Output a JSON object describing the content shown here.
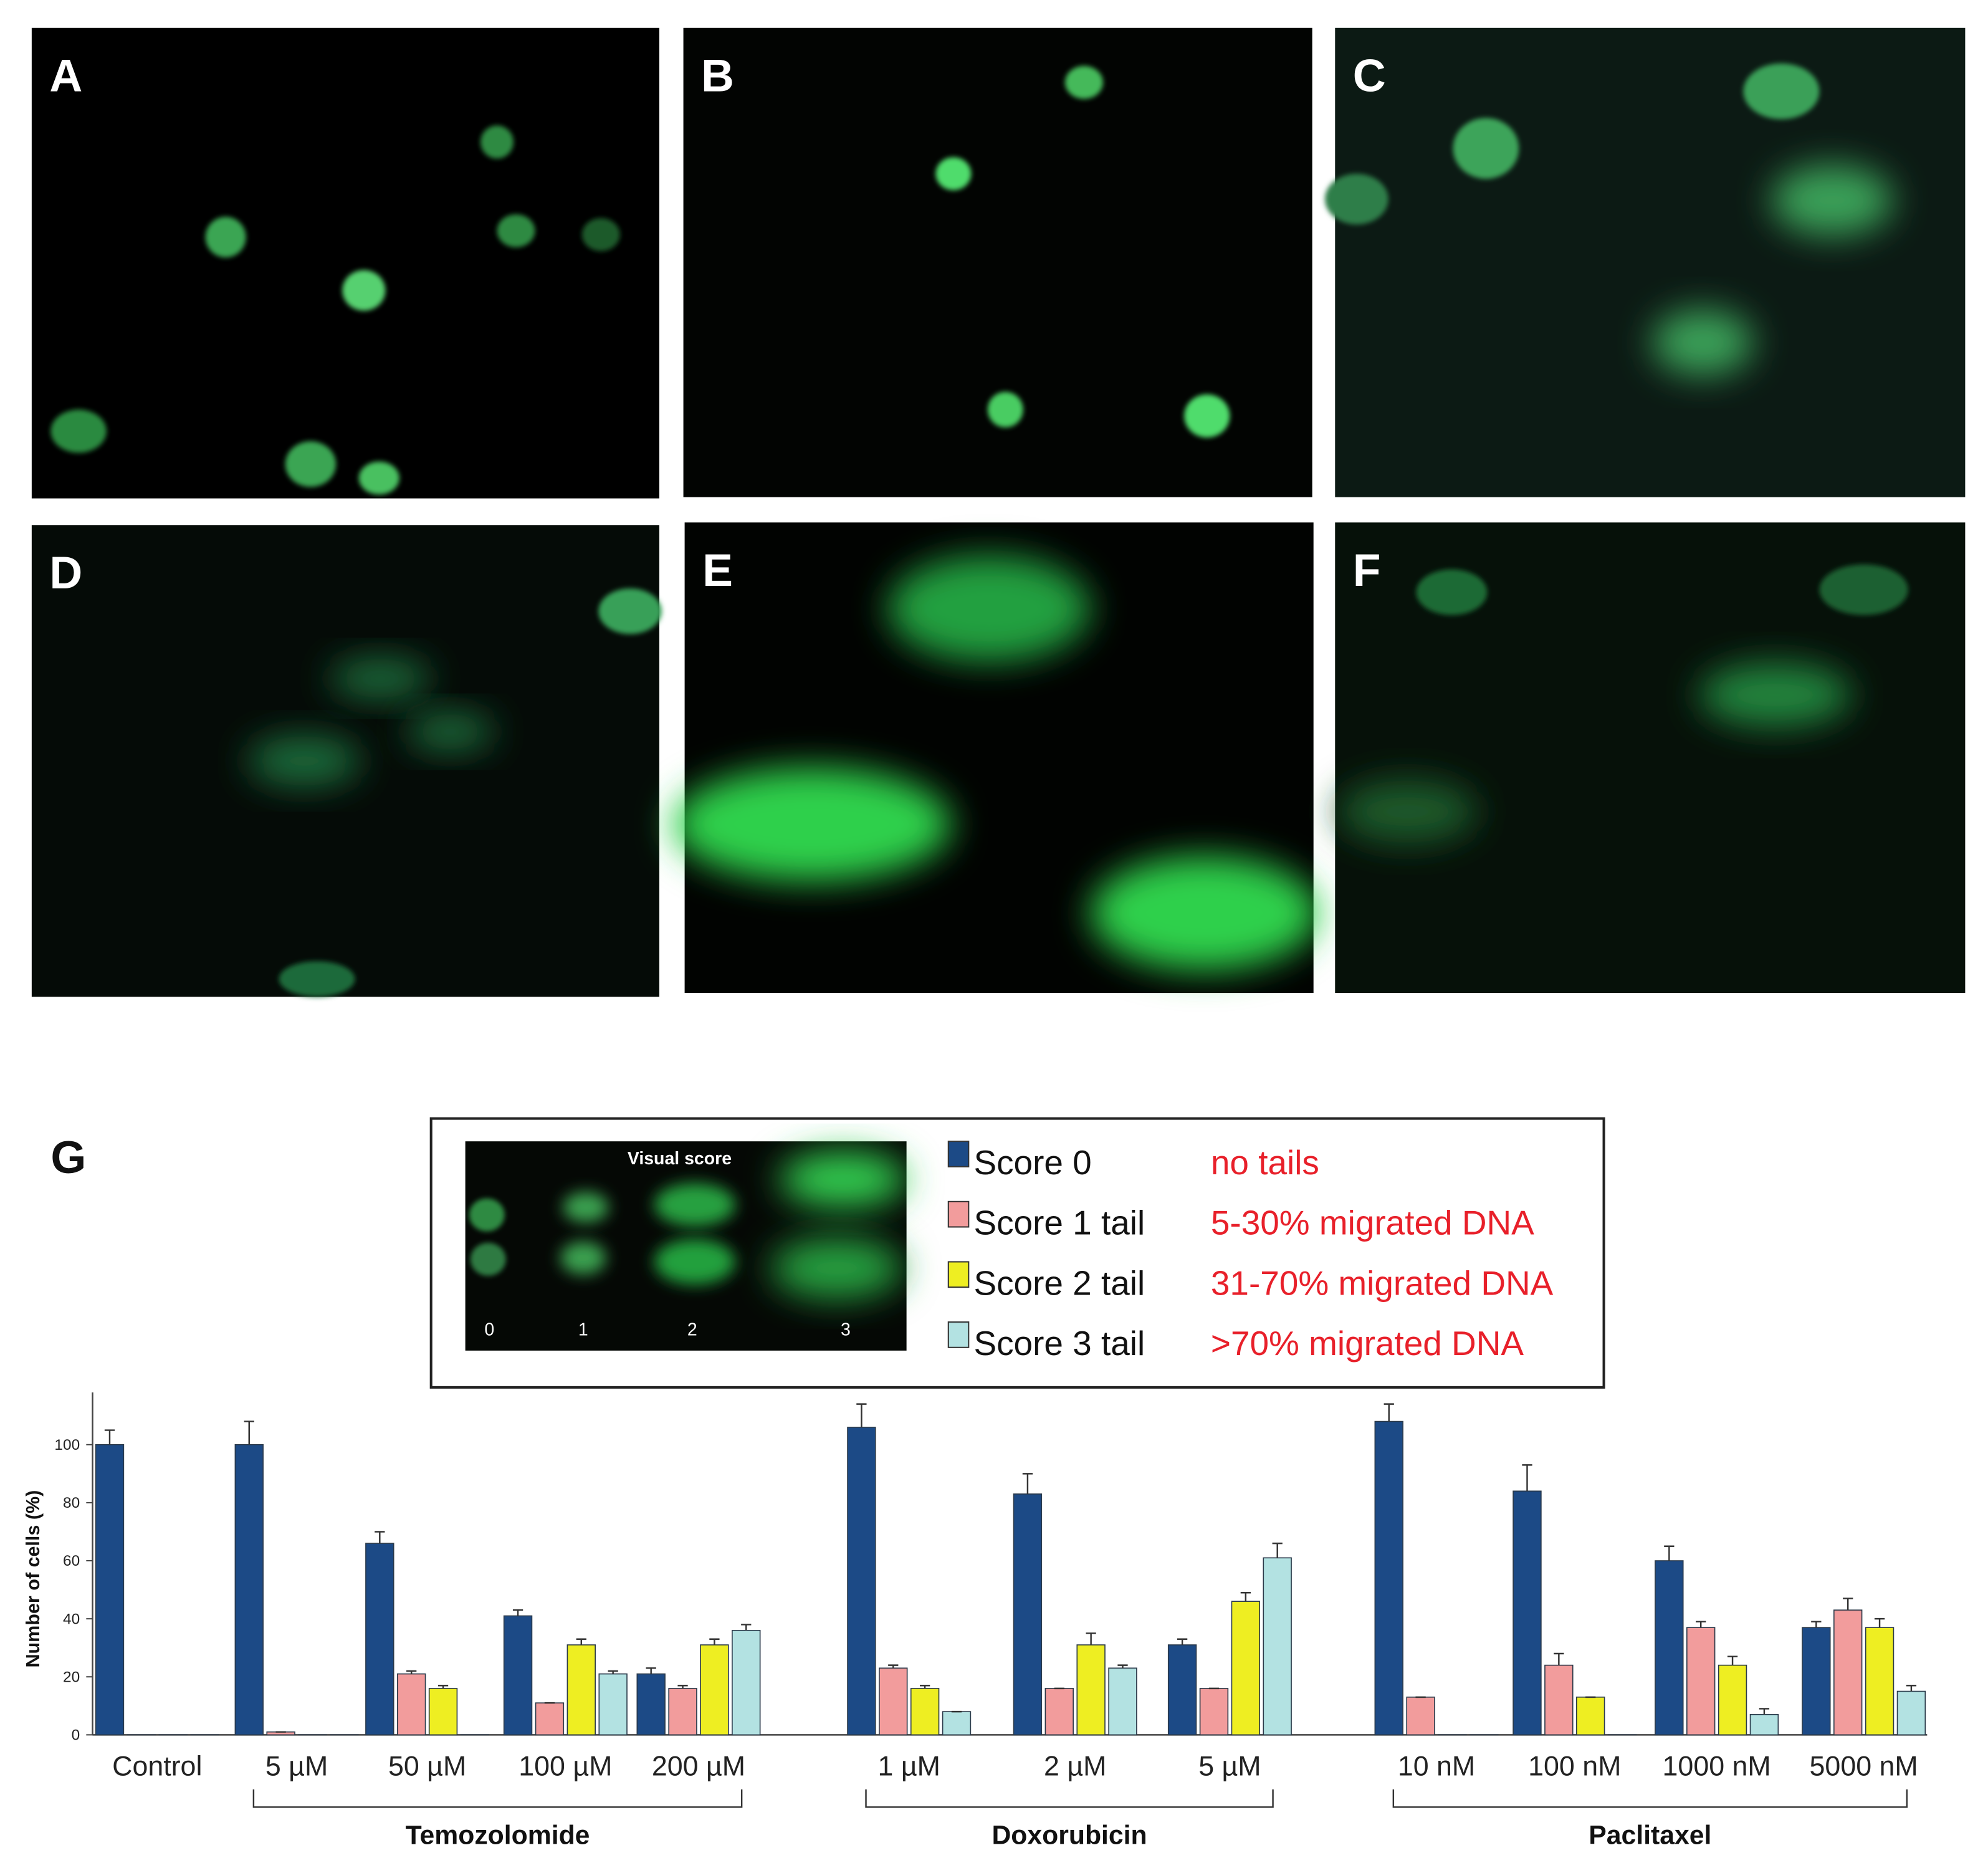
{
  "panels": [
    "A",
    "B",
    "C",
    "D",
    "E",
    "F"
  ],
  "chart_data": {
    "type": "bar",
    "panel_label": "G",
    "y_label": "Number of cells (%)",
    "categories": [
      "Control",
      "5 µM",
      "50 µM",
      "100 µM",
      "200 µM",
      "1 µM",
      "2 µM",
      "5 µM",
      "10 nM",
      "100 nM",
      "1000 nM",
      "5000 nM"
    ],
    "groups": [
      "Temozolomide",
      "Doxorubicin",
      "Paclitaxel"
    ],
    "series": [
      {
        "name": "Score 0",
        "description": "no tails",
        "color": "#1c4a86",
        "values": [
          100,
          100,
          66,
          41,
          21,
          106,
          83,
          31,
          108,
          84,
          60,
          37
        ],
        "errors": [
          5,
          8,
          4,
          2,
          2,
          8,
          7,
          2,
          6,
          9,
          5,
          2
        ]
      },
      {
        "name": "Score 1 tail",
        "description": "5-30% migrated DNA",
        "color": "#f29c9c",
        "values": [
          0,
          1,
          21,
          11,
          16,
          23,
          16,
          16,
          13,
          24,
          37,
          43
        ],
        "errors": [
          0,
          0,
          1,
          0,
          1,
          1,
          0,
          0,
          0,
          4,
          2,
          4
        ]
      },
      {
        "name": "Score 2 tail",
        "description": "31-70% migrated DNA",
        "color": "#eeee22",
        "values": [
          0,
          0,
          16,
          31,
          31,
          16,
          31,
          46,
          0,
          13,
          24,
          37
        ],
        "errors": [
          0,
          0,
          1,
          2,
          2,
          1,
          4,
          3,
          0,
          0,
          3,
          3
        ]
      },
      {
        "name": "Score 3 tail",
        "description": ">70% migrated DNA",
        "color": "#b3e2e2",
        "values": [
          0,
          0,
          0,
          21,
          36,
          8,
          23,
          61,
          0,
          0,
          7,
          15
        ],
        "errors": [
          0,
          0,
          0,
          1,
          2,
          0,
          1,
          5,
          0,
          0,
          2,
          2
        ]
      }
    ],
    "ylim": [
      0,
      118
    ],
    "yticks": [
      0,
      20,
      40,
      60,
      80,
      100
    ],
    "inset": {
      "title": "Visual score",
      "labels": [
        0,
        1,
        2,
        3
      ]
    }
  }
}
